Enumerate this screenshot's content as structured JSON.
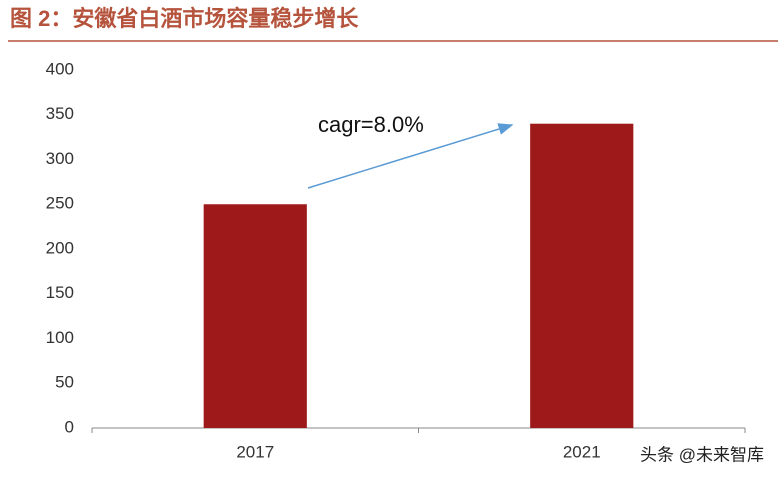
{
  "chart_data": {
    "type": "bar",
    "title": "图 2：安徽省白酒市场容量稳步增长",
    "categories": [
      "2017",
      "2021"
    ],
    "values": [
      250,
      340
    ],
    "color": "#9e1a1a",
    "ylim": [
      0,
      400
    ],
    "yticks": [
      0,
      50,
      100,
      150,
      200,
      250,
      300,
      350,
      400
    ],
    "grid": false,
    "annotation": "cagr=8.0%"
  },
  "watermark": "头条 @未来智库"
}
